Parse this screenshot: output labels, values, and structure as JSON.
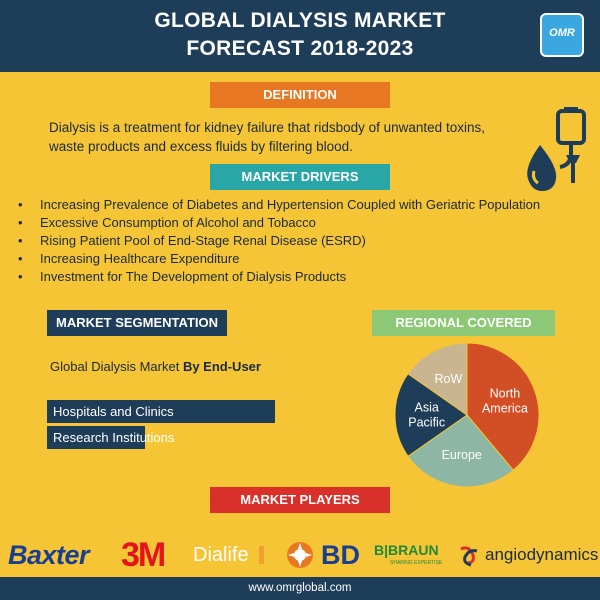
{
  "header": {
    "title_line1": "GLOBAL DIALYSIS MARKET",
    "title_line2": "FORECAST 2018-2023",
    "logo_text": "OMR"
  },
  "definition": {
    "label": "DEFINITION",
    "text": "Dialysis is a treatment for kidney failure that ridsbody of unwanted toxins, waste products and excess fluids by filtering blood."
  },
  "drivers": {
    "label": "MARKET DRIVERS",
    "bullet": "•",
    "items": [
      "Increasing Prevalence of Diabetes and Hypertension Coupled with Geriatric Population",
      "Excessive Consumption of Alcohol and Tobacco",
      "Rising Patient Pool of End-Stage Renal Disease (ESRD)",
      "Increasing Healthcare Expenditure",
      "Investment for The Development of Dialysis Products"
    ]
  },
  "segmentation": {
    "label": "MARKET SEGMENTATION",
    "title_prefix": "Global Dialysis Market ",
    "title_bold": "By End-User",
    "items": [
      "Hospitals and Clinics",
      "Research Institutions"
    ]
  },
  "regions": {
    "label": "REGIONAL COVERED",
    "slices": [
      {
        "name": "North America",
        "label_lines": [
          "North",
          "America"
        ],
        "color": "#d24e25",
        "start_deg": 0,
        "end_deg": 140
      },
      {
        "name": "Europe",
        "label_lines": [
          "Europe"
        ],
        "color": "#8db7a4",
        "start_deg": 140,
        "end_deg": 235
      },
      {
        "name": "Asia Pacific",
        "label_lines": [
          "Asia",
          "Pacific"
        ],
        "color": "#1e3d58",
        "start_deg": 235,
        "end_deg": 305
      },
      {
        "name": "RoW",
        "label_lines": [
          "RoW"
        ],
        "color": "#c9b590",
        "start_deg": 305,
        "end_deg": 360
      }
    ]
  },
  "players": {
    "label": "MARKET PLAYERS",
    "names": {
      "baxter": "Baxter",
      "threem": "3M",
      "dialife": "Dialife",
      "bd": "BD",
      "bbraun": "B|BRAUN",
      "bbraun_sub": "SHARING EXPERTISE",
      "angiodynamics": "angiodynamics"
    }
  },
  "footer": {
    "url": "www.omrglobal.com"
  }
}
